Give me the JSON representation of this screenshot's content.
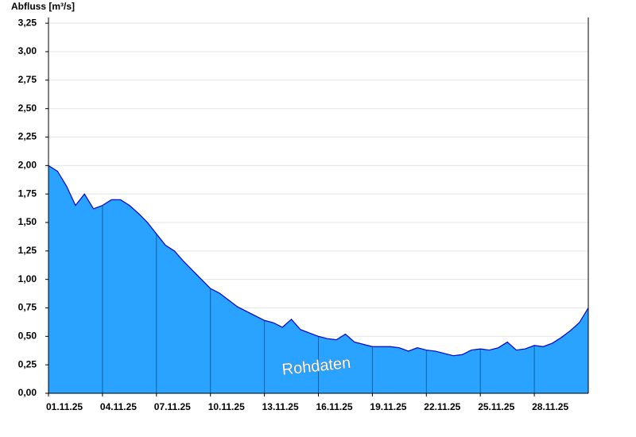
{
  "chart_data": {
    "type": "area",
    "title": "Abfluss [m³/s]",
    "annotation": "Rohdaten",
    "color": "#29a3ff",
    "line_color": "#0000cc",
    "grid": true,
    "xlim": [
      0,
      30
    ],
    "ylim": [
      0,
      3.3
    ],
    "xticks": [
      {
        "value": 0,
        "label": "01.11.25"
      },
      {
        "value": 3,
        "label": "04.11.25"
      },
      {
        "value": 6,
        "label": "07.11.25"
      },
      {
        "value": 9,
        "label": "10.11.25"
      },
      {
        "value": 12,
        "label": "13.11.25"
      },
      {
        "value": 15,
        "label": "16.11.25"
      },
      {
        "value": 18,
        "label": "19.11.25"
      },
      {
        "value": 21,
        "label": "22.11.25"
      },
      {
        "value": 24,
        "label": "25.11.25"
      },
      {
        "value": 27,
        "label": "28.11.25"
      }
    ],
    "yticks": [
      {
        "value": 0,
        "label": "0,00"
      },
      {
        "value": 0.25,
        "label": "0,25"
      },
      {
        "value": 0.5,
        "label": "0,50"
      },
      {
        "value": 0.75,
        "label": "0,75"
      },
      {
        "value": 1,
        "label": "1,00"
      },
      {
        "value": 1.25,
        "label": "1,25"
      },
      {
        "value": 1.5,
        "label": "1,50"
      },
      {
        "value": 1.75,
        "label": "1,75"
      },
      {
        "value": 2,
        "label": "2,00"
      },
      {
        "value": 2.25,
        "label": "2,25"
      },
      {
        "value": 2.5,
        "label": "2,50"
      },
      {
        "value": 2.75,
        "label": "2,75"
      },
      {
        "value": 3,
        "label": "3,00"
      },
      {
        "value": 3.25,
        "label": "3,25"
      }
    ],
    "x": [
      0,
      0.5,
      1,
      1.5,
      2,
      2.5,
      3,
      3.5,
      4,
      4.5,
      5,
      5.5,
      6,
      6.5,
      7,
      7.5,
      8,
      8.5,
      9,
      9.5,
      10,
      10.5,
      11,
      11.5,
      12,
      12.5,
      13,
      13.5,
      14,
      14.5,
      15,
      15.5,
      16,
      16.5,
      17,
      17.5,
      18,
      18.5,
      19,
      19.5,
      20,
      20.5,
      21,
      21.5,
      22,
      22.5,
      23,
      23.5,
      24,
      24.5,
      25,
      25.5,
      26,
      26.5,
      27,
      27.5,
      28,
      28.5,
      29,
      29.5,
      30
    ],
    "values": [
      2.0,
      1.95,
      1.82,
      1.65,
      1.75,
      1.62,
      1.65,
      1.7,
      1.7,
      1.65,
      1.58,
      1.5,
      1.4,
      1.3,
      1.25,
      1.16,
      1.08,
      1.0,
      0.92,
      0.88,
      0.82,
      0.76,
      0.72,
      0.68,
      0.64,
      0.62,
      0.58,
      0.65,
      0.56,
      0.53,
      0.5,
      0.48,
      0.47,
      0.52,
      0.45,
      0.43,
      0.41,
      0.41,
      0.41,
      0.4,
      0.37,
      0.4,
      0.38,
      0.37,
      0.35,
      0.33,
      0.34,
      0.38,
      0.39,
      0.38,
      0.4,
      0.45,
      0.38,
      0.39,
      0.42,
      0.41,
      0.44,
      0.49,
      0.55,
      0.62,
      0.75
    ]
  }
}
